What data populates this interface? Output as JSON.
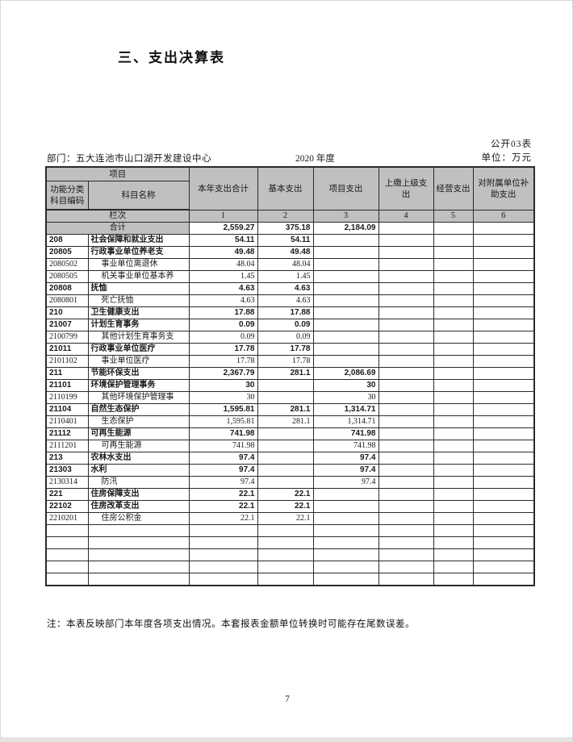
{
  "page": {
    "title": "三、支出决算表",
    "table_label": "公开03表",
    "department": "部门：五大连池市山口湖开发建设中心",
    "year": "2020 年度",
    "unit": "单位：万元",
    "note": "注：本表反映部门本年度各项支出情况。本套报表金额单位转换时可能存在尾数误差。",
    "page_number": "7"
  },
  "table": {
    "header": {
      "project": "项目",
      "code_col": "功能分类科目编码",
      "name_col": "科目名称",
      "cols": [
        "本年支出合计",
        "基本支出",
        "项目支出",
        "上缴上级支出",
        "经营支出",
        "对附属单位补助支出"
      ],
      "lanci": "栏次",
      "col_numbers": [
        "1",
        "2",
        "3",
        "4",
        "5",
        "6"
      ]
    },
    "total_row": {
      "label": "合计",
      "values": [
        "2,559.27",
        "375.18",
        "2,184.09",
        "",
        "",
        ""
      ]
    },
    "rows": [
      {
        "code": "208",
        "name": "社会保障和就业支出",
        "bold": true,
        "values": [
          "54.11",
          "54.11",
          "",
          "",
          "",
          ""
        ]
      },
      {
        "code": "20805",
        "name": "行政事业单位养老支",
        "bold": true,
        "values": [
          "49.48",
          "49.48",
          "",
          "",
          "",
          ""
        ]
      },
      {
        "code": "2080502",
        "name": "事业单位离退休",
        "bold": false,
        "values": [
          "48.04",
          "48.04",
          "",
          "",
          "",
          ""
        ]
      },
      {
        "code": "2080505",
        "name": "机关事业单位基本养",
        "bold": false,
        "values": [
          "1.45",
          "1.45",
          "",
          "",
          "",
          ""
        ]
      },
      {
        "code": "20808",
        "name": "抚恤",
        "bold": true,
        "values": [
          "4.63",
          "4.63",
          "",
          "",
          "",
          ""
        ]
      },
      {
        "code": "2080801",
        "name": "死亡抚恤",
        "bold": false,
        "values": [
          "4.63",
          "4.63",
          "",
          "",
          "",
          ""
        ]
      },
      {
        "code": "210",
        "name": "卫生健康支出",
        "bold": true,
        "values": [
          "17.88",
          "17.88",
          "",
          "",
          "",
          ""
        ]
      },
      {
        "code": "21007",
        "name": "计划生育事务",
        "bold": true,
        "values": [
          "0.09",
          "0.09",
          "",
          "",
          "",
          ""
        ]
      },
      {
        "code": "2100799",
        "name": "其他计划生育事务支",
        "bold": false,
        "values": [
          "0.09",
          "0.09",
          "",
          "",
          "",
          ""
        ]
      },
      {
        "code": "21011",
        "name": "行政事业单位医疗",
        "bold": true,
        "values": [
          "17.78",
          "17.78",
          "",
          "",
          "",
          ""
        ]
      },
      {
        "code": "2101102",
        "name": "事业单位医疗",
        "bold": false,
        "values": [
          "17.78",
          "17.78",
          "",
          "",
          "",
          ""
        ]
      },
      {
        "code": "211",
        "name": "节能环保支出",
        "bold": true,
        "values": [
          "2,367.79",
          "281.1",
          "2,086.69",
          "",
          "",
          ""
        ]
      },
      {
        "code": "21101",
        "name": "环境保护管理事务",
        "bold": true,
        "values": [
          "30",
          "",
          "30",
          "",
          "",
          ""
        ]
      },
      {
        "code": "2110199",
        "name": "其他环境保护管理事",
        "bold": false,
        "values": [
          "30",
          "",
          "30",
          "",
          "",
          ""
        ]
      },
      {
        "code": "21104",
        "name": "自然生态保护",
        "bold": true,
        "values": [
          "1,595.81",
          "281.1",
          "1,314.71",
          "",
          "",
          ""
        ]
      },
      {
        "code": "2110401",
        "name": "生态保护",
        "bold": false,
        "values": [
          "1,595.81",
          "281.1",
          "1,314.71",
          "",
          "",
          ""
        ]
      },
      {
        "code": "21112",
        "name": "可再生能源",
        "bold": true,
        "values": [
          "741.98",
          "",
          "741.98",
          "",
          "",
          ""
        ]
      },
      {
        "code": "2111201",
        "name": "可再生能源",
        "bold": false,
        "values": [
          "741.98",
          "",
          "741.98",
          "",
          "",
          ""
        ]
      },
      {
        "code": "213",
        "name": "农林水支出",
        "bold": true,
        "values": [
          "97.4",
          "",
          "97.4",
          "",
          "",
          ""
        ]
      },
      {
        "code": "21303",
        "name": "水利",
        "bold": true,
        "values": [
          "97.4",
          "",
          "97.4",
          "",
          "",
          ""
        ]
      },
      {
        "code": "2130314",
        "name": "防汛",
        "bold": false,
        "values": [
          "97.4",
          "",
          "97.4",
          "",
          "",
          ""
        ]
      },
      {
        "code": "221",
        "name": "住房保障支出",
        "bold": true,
        "values": [
          "22.1",
          "22.1",
          "",
          "",
          "",
          ""
        ]
      },
      {
        "code": "22102",
        "name": "住房改革支出",
        "bold": true,
        "values": [
          "22.1",
          "22.1",
          "",
          "",
          "",
          ""
        ]
      },
      {
        "code": "2210201",
        "name": "住房公积金",
        "bold": false,
        "values": [
          "22.1",
          "22.1",
          "",
          "",
          "",
          ""
        ]
      }
    ],
    "empty_row_count": 5
  },
  "colors": {
    "header_bg": "#c0c0c0",
    "border": "#2a2a2a",
    "page_edge": "#e3e3e3"
  }
}
